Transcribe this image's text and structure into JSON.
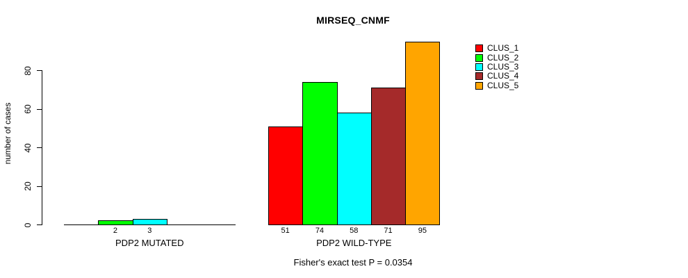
{
  "title": "MIRSEQ_CNMF",
  "y_axis": {
    "label": "number of cases",
    "ticks": [
      0,
      20,
      40,
      60,
      80
    ]
  },
  "footer": "Fisher's exact test P = 0.0354",
  "legend": {
    "entries": [
      {
        "label": "CLUS_1",
        "color": "#FF0000"
      },
      {
        "label": "CLUS_2",
        "color": "#00FF00"
      },
      {
        "label": "CLUS_3",
        "color": "#00FFFF"
      },
      {
        "label": "CLUS_4",
        "color": "#A52A2A"
      },
      {
        "label": "CLUS_5",
        "color": "#FFA500"
      }
    ]
  },
  "chart_data": {
    "type": "bar",
    "title": "MIRSEQ_CNMF",
    "xlabel": "",
    "ylabel": "number of cases",
    "ylim": [
      0,
      96
    ],
    "yticks": [
      0,
      20,
      40,
      60,
      80
    ],
    "grid": false,
    "legend_position": "top-right",
    "categories": [
      "PDP2 MUTATED",
      "PDP2 WILD-TYPE"
    ],
    "series": [
      {
        "name": "CLUS_1",
        "color": "#FF0000",
        "values": [
          0,
          51
        ]
      },
      {
        "name": "CLUS_2",
        "color": "#00FF00",
        "values": [
          2,
          74
        ]
      },
      {
        "name": "CLUS_3",
        "color": "#00FFFF",
        "values": [
          3,
          58
        ]
      },
      {
        "name": "CLUS_4",
        "color": "#A52A2A",
        "values": [
          0,
          71
        ]
      },
      {
        "name": "CLUS_5",
        "color": "#FFA500",
        "values": [
          0,
          95
        ]
      }
    ],
    "bar_value_labels": [
      [
        null,
        2,
        3,
        null,
        null
      ],
      [
        51,
        74,
        58,
        71,
        95
      ]
    ],
    "annotation": "Fisher's exact test P = 0.0354"
  }
}
